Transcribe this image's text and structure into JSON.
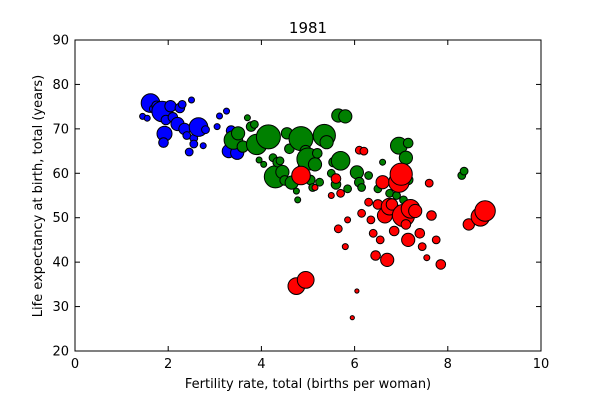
{
  "chart_data": {
    "type": "scatter",
    "title": "1981",
    "xlabel": "Fertility rate, total (births per woman)",
    "ylabel": "Life expectancy at birth, total (years)",
    "xlim": [
      0,
      10
    ],
    "ylim": [
      20,
      90
    ],
    "xticks": [
      0,
      2,
      4,
      6,
      8,
      10
    ],
    "yticks": [
      20,
      30,
      40,
      50,
      60,
      70,
      80,
      90
    ],
    "grid": false,
    "legend": "none",
    "colors": {
      "blue": "#0000ff",
      "green": "#008000",
      "red": "#ff0000",
      "edge": "#000000"
    },
    "series": [
      {
        "color": "blue",
        "points": [
          {
            "x": 1.45,
            "y": 72.8,
            "s": 2
          },
          {
            "x": 1.55,
            "y": 72.4,
            "s": 2
          },
          {
            "x": 1.62,
            "y": 75.8,
            "s": 9
          },
          {
            "x": 1.68,
            "y": 74.5,
            "s": 3
          },
          {
            "x": 1.75,
            "y": 75.2,
            "s": 4
          },
          {
            "x": 1.82,
            "y": 73.5,
            "s": 5
          },
          {
            "x": 1.87,
            "y": 73.9,
            "s": 10
          },
          {
            "x": 1.95,
            "y": 72.0,
            "s": 4
          },
          {
            "x": 1.92,
            "y": 68.9,
            "s": 7
          },
          {
            "x": 1.9,
            "y": 66.9,
            "s": 4
          },
          {
            "x": 2.05,
            "y": 75.1,
            "s": 5
          },
          {
            "x": 2.1,
            "y": 72.6,
            "s": 4
          },
          {
            "x": 2.2,
            "y": 71.1,
            "s": 6
          },
          {
            "x": 2.25,
            "y": 74.7,
            "s": 4
          },
          {
            "x": 2.3,
            "y": 75.5,
            "s": 3
          },
          {
            "x": 2.35,
            "y": 70.0,
            "s": 5
          },
          {
            "x": 2.4,
            "y": 68.5,
            "s": 3
          },
          {
            "x": 2.45,
            "y": 64.8,
            "s": 3
          },
          {
            "x": 2.5,
            "y": 76.5,
            "s": 2
          },
          {
            "x": 2.55,
            "y": 67.9,
            "s": 3
          },
          {
            "x": 2.65,
            "y": 70.4,
            "s": 9
          },
          {
            "x": 2.75,
            "y": 66.2,
            "s": 2
          },
          {
            "x": 2.8,
            "y": 69.8,
            "s": 3
          },
          {
            "x": 3.05,
            "y": 70.5,
            "s": 2
          },
          {
            "x": 3.1,
            "y": 72.9,
            "s": 2
          },
          {
            "x": 3.25,
            "y": 74.0,
            "s": 2
          },
          {
            "x": 3.3,
            "y": 65.0,
            "s": 6
          },
          {
            "x": 3.35,
            "y": 69.6,
            "s": 4
          },
          {
            "x": 3.48,
            "y": 64.6,
            "s": 6
          },
          {
            "x": 2.55,
            "y": 66.6,
            "s": 3
          }
        ]
      },
      {
        "color": "green",
        "points": [
          {
            "x": 3.4,
            "y": 67.5,
            "s": 9
          },
          {
            "x": 3.5,
            "y": 69.0,
            "s": 6
          },
          {
            "x": 3.6,
            "y": 66.0,
            "s": 5
          },
          {
            "x": 3.7,
            "y": 72.5,
            "s": 2
          },
          {
            "x": 3.78,
            "y": 70.5,
            "s": 4
          },
          {
            "x": 3.85,
            "y": 71.0,
            "s": 3
          },
          {
            "x": 3.9,
            "y": 66.5,
            "s": 10
          },
          {
            "x": 3.95,
            "y": 63.0,
            "s": 2
          },
          {
            "x": 4.05,
            "y": 62.0,
            "s": 2
          },
          {
            "x": 4.1,
            "y": 67.8,
            "s": 4
          },
          {
            "x": 4.15,
            "y": 68.2,
            "s": 12
          },
          {
            "x": 4.25,
            "y": 63.5,
            "s": 3
          },
          {
            "x": 4.3,
            "y": 59.2,
            "s": 11
          },
          {
            "x": 4.35,
            "y": 62.5,
            "s": 4
          },
          {
            "x": 4.45,
            "y": 60.3,
            "s": 6
          },
          {
            "x": 4.5,
            "y": 58.4,
            "s": 4
          },
          {
            "x": 4.55,
            "y": 69.0,
            "s": 5
          },
          {
            "x": 4.6,
            "y": 65.5,
            "s": 4
          },
          {
            "x": 4.65,
            "y": 57.9,
            "s": 6
          },
          {
            "x": 4.75,
            "y": 56.0,
            "s": 2
          },
          {
            "x": 4.78,
            "y": 54.0,
            "s": 2
          },
          {
            "x": 4.85,
            "y": 67.8,
            "s": 12
          },
          {
            "x": 4.9,
            "y": 61.0,
            "s": 5
          },
          {
            "x": 4.95,
            "y": 65.0,
            "s": 5
          },
          {
            "x": 5.0,
            "y": 63.2,
            "s": 11
          },
          {
            "x": 5.05,
            "y": 58.5,
            "s": 4
          },
          {
            "x": 5.15,
            "y": 62.0,
            "s": 6
          },
          {
            "x": 5.2,
            "y": 64.5,
            "s": 4
          },
          {
            "x": 5.25,
            "y": 58.0,
            "s": 3
          },
          {
            "x": 5.35,
            "y": 68.5,
            "s": 11
          },
          {
            "x": 5.4,
            "y": 67.0,
            "s": 6
          },
          {
            "x": 5.5,
            "y": 60.0,
            "s": 3
          },
          {
            "x": 5.55,
            "y": 62.5,
            "s": 4
          },
          {
            "x": 5.6,
            "y": 57.5,
            "s": 4
          },
          {
            "x": 5.65,
            "y": 73.0,
            "s": 6
          },
          {
            "x": 5.7,
            "y": 62.8,
            "s": 9
          },
          {
            "x": 5.8,
            "y": 72.8,
            "s": 6
          },
          {
            "x": 5.85,
            "y": 56.5,
            "s": 3
          },
          {
            "x": 6.05,
            "y": 60.2,
            "s": 6
          },
          {
            "x": 6.1,
            "y": 58.0,
            "s": 4
          },
          {
            "x": 6.15,
            "y": 56.8,
            "s": 3
          },
          {
            "x": 6.3,
            "y": 59.5,
            "s": 3
          },
          {
            "x": 6.5,
            "y": 56.5,
            "s": 3
          },
          {
            "x": 6.6,
            "y": 62.5,
            "s": 2
          },
          {
            "x": 6.75,
            "y": 55.5,
            "s": 3
          },
          {
            "x": 6.85,
            "y": 57.5,
            "s": 4
          },
          {
            "x": 6.9,
            "y": 55.0,
            "s": 3
          },
          {
            "x": 6.95,
            "y": 66.2,
            "s": 8
          },
          {
            "x": 7.1,
            "y": 63.5,
            "s": 6
          },
          {
            "x": 7.15,
            "y": 58.5,
            "s": 4
          },
          {
            "x": 7.05,
            "y": 54.0,
            "s": 3
          },
          {
            "x": 7.15,
            "y": 66.8,
            "s": 4
          },
          {
            "x": 8.3,
            "y": 59.5,
            "s": 3
          },
          {
            "x": 8.35,
            "y": 60.5,
            "s": 3
          },
          {
            "x": 5.1,
            "y": 56.8,
            "s": 3
          },
          {
            "x": 4.4,
            "y": 62.8,
            "s": 3
          }
        ]
      },
      {
        "color": "red",
        "points": [
          {
            "x": 4.75,
            "y": 34.6,
            "s": 8
          },
          {
            "x": 4.95,
            "y": 36.0,
            "s": 8
          },
          {
            "x": 4.85,
            "y": 59.5,
            "s": 9
          },
          {
            "x": 5.15,
            "y": 56.8,
            "s": 2
          },
          {
            "x": 5.6,
            "y": 58.8,
            "s": 4
          },
          {
            "x": 5.65,
            "y": 47.5,
            "s": 3
          },
          {
            "x": 5.7,
            "y": 55.5,
            "s": 3
          },
          {
            "x": 5.8,
            "y": 43.5,
            "s": 2
          },
          {
            "x": 5.85,
            "y": 49.5,
            "s": 2
          },
          {
            "x": 5.95,
            "y": 27.5,
            "s": 1
          },
          {
            "x": 6.05,
            "y": 33.5,
            "s": 1
          },
          {
            "x": 6.1,
            "y": 65.2,
            "s": 3
          },
          {
            "x": 6.15,
            "y": 51.0,
            "s": 3
          },
          {
            "x": 6.2,
            "y": 65.0,
            "s": 3
          },
          {
            "x": 6.3,
            "y": 53.5,
            "s": 3
          },
          {
            "x": 6.35,
            "y": 49.5,
            "s": 3
          },
          {
            "x": 6.4,
            "y": 46.5,
            "s": 3
          },
          {
            "x": 6.45,
            "y": 41.5,
            "s": 4
          },
          {
            "x": 6.5,
            "y": 53.0,
            "s": 4
          },
          {
            "x": 6.55,
            "y": 45.0,
            "s": 3
          },
          {
            "x": 6.6,
            "y": 58.0,
            "s": 6
          },
          {
            "x": 6.65,
            "y": 50.5,
            "s": 7
          },
          {
            "x": 6.7,
            "y": 40.5,
            "s": 6
          },
          {
            "x": 6.75,
            "y": 52.5,
            "s": 8
          },
          {
            "x": 6.8,
            "y": 53.0,
            "s": 5
          },
          {
            "x": 6.85,
            "y": 47.0,
            "s": 4
          },
          {
            "x": 6.95,
            "y": 58.0,
            "s": 10
          },
          {
            "x": 7.0,
            "y": 59.8,
            "s": 11
          },
          {
            "x": 7.05,
            "y": 50.5,
            "s": 11
          },
          {
            "x": 7.1,
            "y": 48.5,
            "s": 4
          },
          {
            "x": 7.15,
            "y": 45.0,
            "s": 6
          },
          {
            "x": 7.2,
            "y": 52.0,
            "s": 9
          },
          {
            "x": 7.3,
            "y": 51.5,
            "s": 6
          },
          {
            "x": 7.4,
            "y": 46.5,
            "s": 4
          },
          {
            "x": 7.45,
            "y": 43.5,
            "s": 3
          },
          {
            "x": 7.55,
            "y": 41.0,
            "s": 2
          },
          {
            "x": 7.6,
            "y": 57.8,
            "s": 3
          },
          {
            "x": 7.65,
            "y": 50.5,
            "s": 4
          },
          {
            "x": 7.75,
            "y": 45.0,
            "s": 3
          },
          {
            "x": 7.85,
            "y": 39.5,
            "s": 4
          },
          {
            "x": 8.45,
            "y": 48.5,
            "s": 5
          },
          {
            "x": 8.7,
            "y": 50.2,
            "s": 9
          },
          {
            "x": 8.8,
            "y": 51.5,
            "s": 10
          },
          {
            "x": 5.5,
            "y": 55.0,
            "s": 2
          }
        ]
      }
    ]
  }
}
